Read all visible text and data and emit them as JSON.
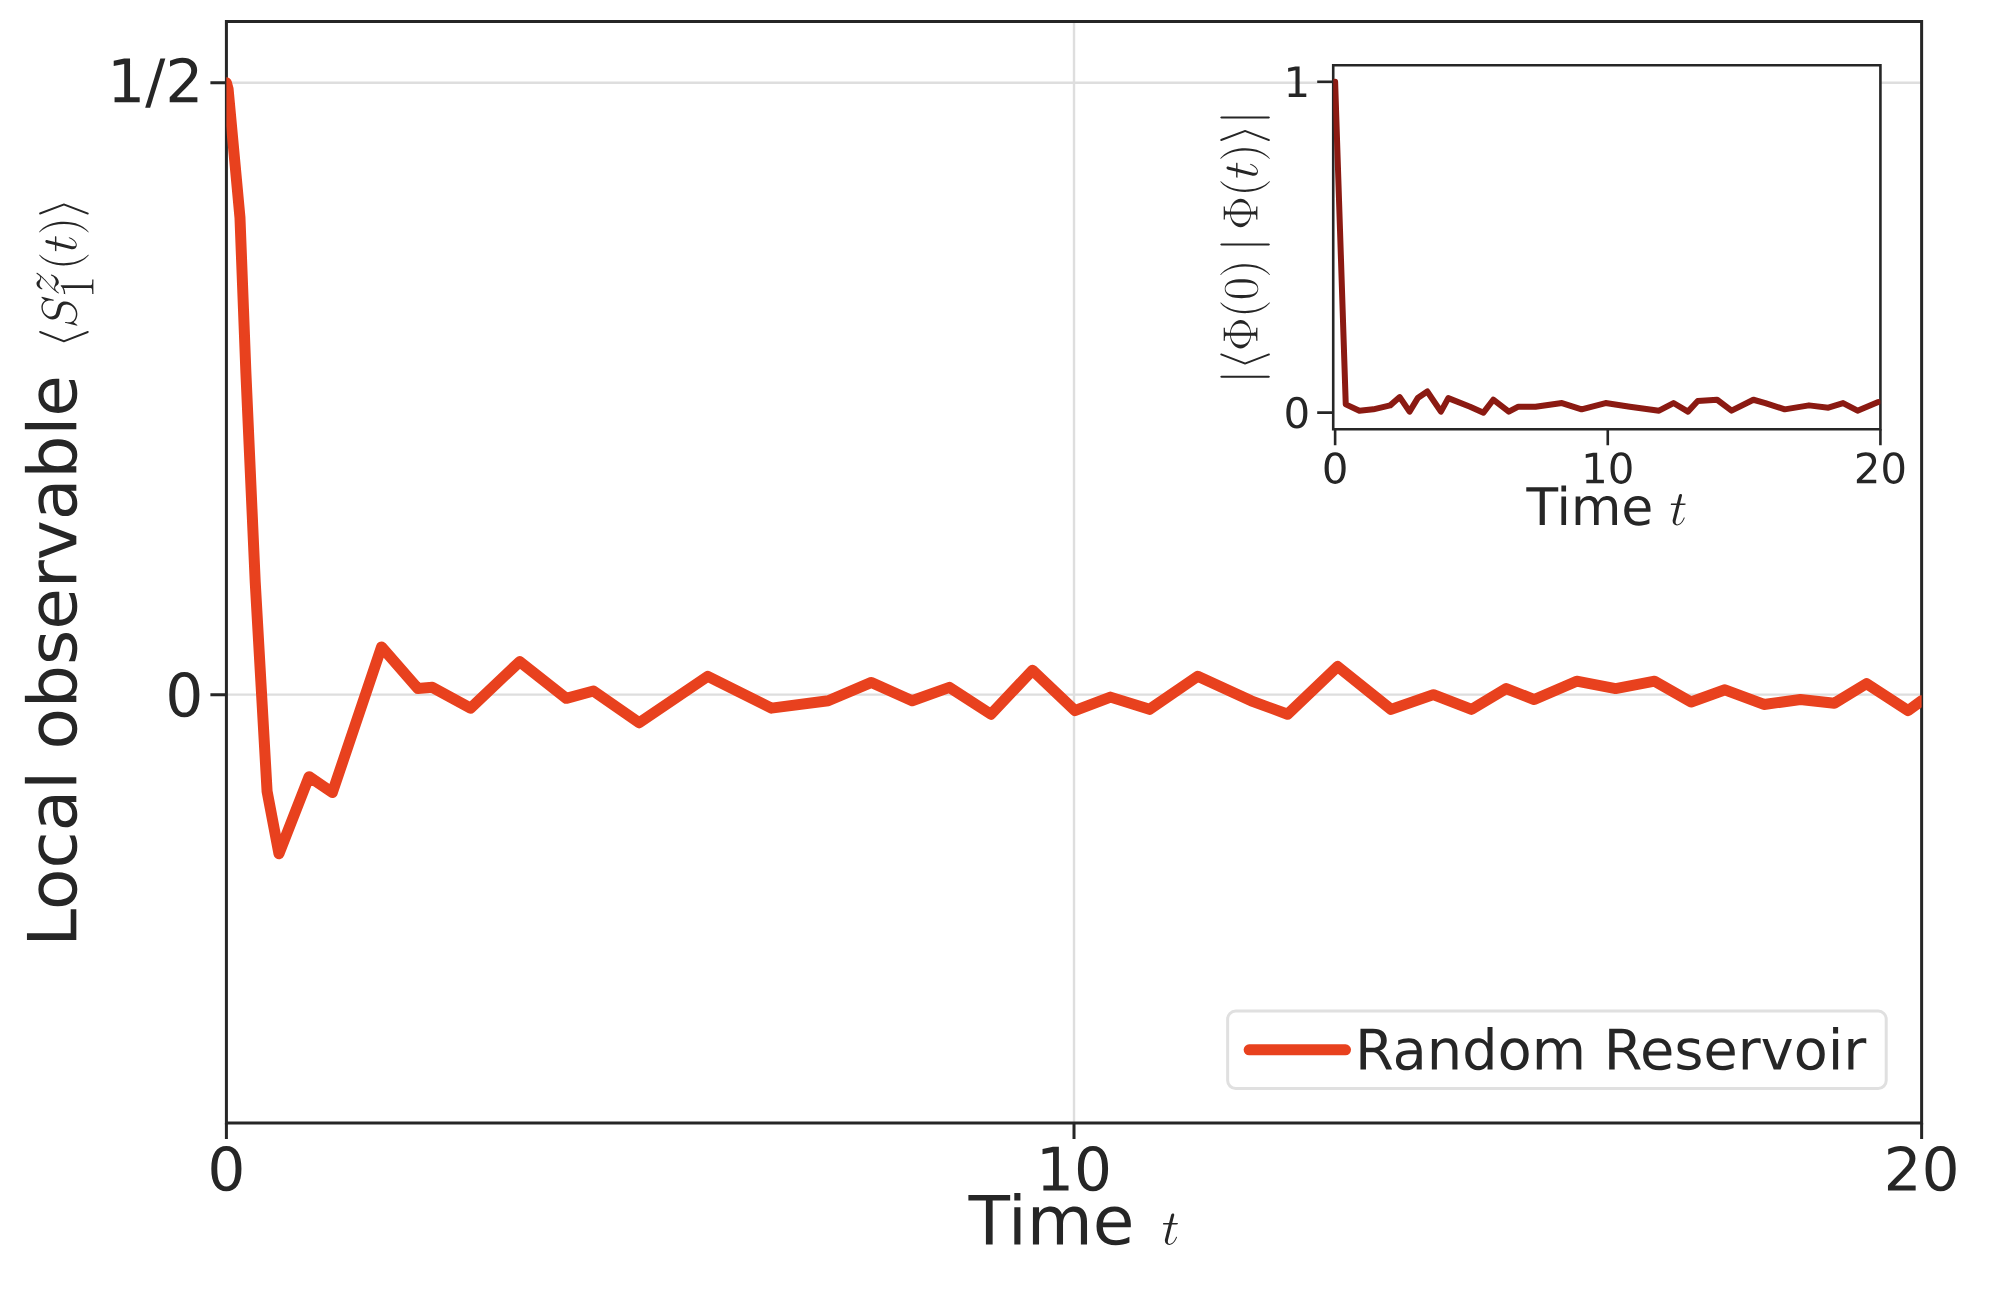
{
  "chart_data": [
    {
      "type": "line",
      "xlabel": "\\mbox{Time}\\;\\; t",
      "ylabel": "\\mbox{Local observable}\\;\\;\\langle S^z_1(t)\\rangle",
      "x": [
        0,
        0.02,
        0.16,
        0.23,
        0.34,
        0.48,
        0.62,
        0.975,
        1.25,
        1.83,
        2.26,
        2.43,
        2.88,
        3.46,
        4.01,
        4.33,
        4.87,
        5.68,
        6.43,
        7.1,
        7.61,
        8.09,
        8.53,
        9.02,
        9.51,
        10.01,
        10.43,
        10.89,
        11.46,
        12.09,
        12.52,
        13.11,
        13.74,
        14.24,
        14.69,
        15.1,
        15.43,
        15.93,
        16.39,
        16.85,
        17.28,
        17.68,
        18.14,
        18.57,
        18.97,
        19.35,
        19.84,
        20.0
      ],
      "series": [
        {
          "name": "Random Reservoir",
          "color": "#e8411e",
          "values": [
            0.5,
            0.495,
            0.39,
            0.263,
            0.092,
            -0.079,
            -0.13,
            -0.067,
            -0.08,
            0.039,
            0.005,
            0.006,
            -0.011,
            0.027,
            -0.003,
            0.003,
            -0.023,
            0.015,
            -0.011,
            -0.005,
            0.01,
            -0.005,
            0.006,
            -0.016,
            0.02,
            -0.013,
            -0.002,
            -0.012,
            0.015,
            -0.005,
            -0.016,
            0.023,
            -0.012,
            0.0,
            -0.012,
            0.005,
            -0.004,
            0.011,
            0.005,
            0.011,
            -0.006,
            0.004,
            -0.008,
            -0.004,
            -0.007,
            0.009,
            -0.013,
            -0.005
          ]
        }
      ],
      "xlim": [
        0,
        20
      ],
      "ylim": [
        -0.35,
        0.55
      ],
      "xticks": [
        0,
        10,
        20
      ],
      "yticks": [
        0,
        {
          "value": 0.5,
          "label": "1/2"
        }
      ],
      "grid": true,
      "legend": "bottom right"
    },
    {
      "type": "line",
      "xlabel": "\\mbox{Time}\\ t",
      "ylabel": "|\\langle\\Phi(0)\\,|\\,\\Phi(t)\\rangle|",
      "x": [
        0,
        0.39,
        0.89,
        1.4,
        2.02,
        2.37,
        2.73,
        3.03,
        3.38,
        3.88,
        4.15,
        4.95,
        5.44,
        5.8,
        6.37,
        6.72,
        7.35,
        8.32,
        9.04,
        9.92,
        10.81,
        11.88,
        12.41,
        12.94,
        13.3,
        14.01,
        14.54,
        15.34,
        15.78,
        16.49,
        17.38,
        18.09,
        18.63,
        19.16,
        19.92
      ],
      "series": [
        {
          "color": "#8b1a12",
          "values": [
            1.0,
            0.025,
            0.006,
            0.01,
            0.022,
            0.047,
            0.003,
            0.044,
            0.064,
            0.003,
            0.044,
            0.018,
            0.0,
            0.039,
            0.003,
            0.018,
            0.018,
            0.029,
            0.01,
            0.029,
            0.018,
            0.006,
            0.029,
            0.003,
            0.035,
            0.039,
            0.006,
            0.039,
            0.029,
            0.01,
            0.022,
            0.015,
            0.029,
            0.006,
            0.032
          ]
        }
      ],
      "xlim": [
        -0.07,
        20
      ],
      "ylim": [
        -0.05,
        1.05
      ],
      "xticks": [
        0,
        10,
        20
      ],
      "yticks": [
        0,
        1
      ]
    }
  ]
}
